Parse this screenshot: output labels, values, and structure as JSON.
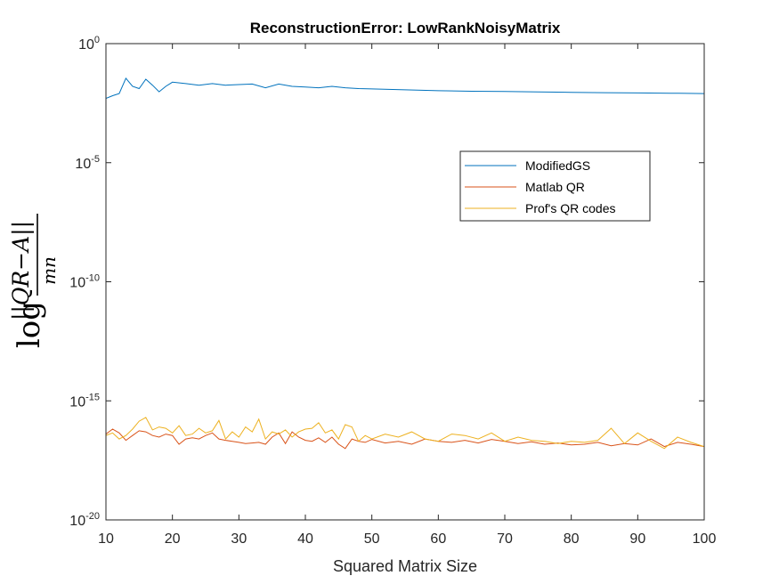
{
  "chart_data": {
    "type": "line",
    "title": "ReconstructionError: LowRankNoisyMatrix",
    "xlabel": "Squared Matrix Size",
    "ylabel": {
      "prefix": "log",
      "numerator": "||QR−A||",
      "denominator": "mn"
    },
    "xlim": [
      10,
      100
    ],
    "ylim": [
      1e-20,
      1
    ],
    "yscale": "log",
    "x_ticks": [
      "10",
      "20",
      "30",
      "40",
      "50",
      "60",
      "70",
      "80",
      "90",
      "100"
    ],
    "y_ticks": [
      {
        "base": "10",
        "exp": "0"
      },
      {
        "base": "10",
        "exp": "-5"
      },
      {
        "base": "10",
        "exp": "-10"
      },
      {
        "base": "10",
        "exp": "-15"
      },
      {
        "base": "10",
        "exp": "-20"
      }
    ],
    "legend_position": "upper-right",
    "series": [
      {
        "name": "ModifiedGS",
        "color": "#0072BD",
        "points": [
          [
            10,
            0.005
          ],
          [
            11,
            0.0065
          ],
          [
            12,
            0.008
          ],
          [
            13,
            0.035
          ],
          [
            14,
            0.016
          ],
          [
            15,
            0.013
          ],
          [
            16,
            0.032
          ],
          [
            17,
            0.018
          ],
          [
            18,
            0.0095
          ],
          [
            19,
            0.016
          ],
          [
            20,
            0.024
          ],
          [
            22,
            0.021
          ],
          [
            24,
            0.018
          ],
          [
            26,
            0.021
          ],
          [
            28,
            0.018
          ],
          [
            30,
            0.019
          ],
          [
            32,
            0.02
          ],
          [
            34,
            0.014
          ],
          [
            36,
            0.02
          ],
          [
            38,
            0.016
          ],
          [
            40,
            0.015
          ],
          [
            42,
            0.014
          ],
          [
            44,
            0.016
          ],
          [
            46,
            0.014
          ],
          [
            48,
            0.013
          ],
          [
            50,
            0.0125
          ],
          [
            55,
            0.0115
          ],
          [
            60,
            0.0105
          ],
          [
            65,
            0.01
          ],
          [
            70,
            0.0098
          ],
          [
            75,
            0.0093
          ],
          [
            80,
            0.009
          ],
          [
            85,
            0.0087
          ],
          [
            90,
            0.0085
          ],
          [
            95,
            0.0083
          ],
          [
            100,
            0.008
          ]
        ]
      },
      {
        "name": "Matlab QR",
        "color": "#D95319",
        "points": [
          [
            10,
            4e-17
          ],
          [
            11,
            6.5e-17
          ],
          [
            12,
            4.5e-17
          ],
          [
            13,
            2.2e-17
          ],
          [
            14,
            3.5e-17
          ],
          [
            15,
            5.5e-17
          ],
          [
            16,
            5e-17
          ],
          [
            17,
            3.5e-17
          ],
          [
            18,
            3e-17
          ],
          [
            19,
            4e-17
          ],
          [
            20,
            3.5e-17
          ],
          [
            21,
            1.5e-17
          ],
          [
            22,
            2.5e-17
          ],
          [
            23,
            2.8e-17
          ],
          [
            24,
            2.5e-17
          ],
          [
            25,
            3.5e-17
          ],
          [
            26,
            4.5e-17
          ],
          [
            27,
            2.5e-17
          ],
          [
            28,
            2.2e-17
          ],
          [
            29,
            2e-17
          ],
          [
            30,
            1.8e-17
          ],
          [
            31,
            1.6e-17
          ],
          [
            32,
            1.7e-17
          ],
          [
            33,
            1.8e-17
          ],
          [
            34,
            1.5e-17
          ],
          [
            35,
            3e-17
          ],
          [
            36,
            4.5e-17
          ],
          [
            37,
            1.6e-17
          ],
          [
            38,
            5e-17
          ],
          [
            39,
            3e-17
          ],
          [
            40,
            2.2e-17
          ],
          [
            41,
            2e-17
          ],
          [
            42,
            2.8e-17
          ],
          [
            43,
            1.8e-17
          ],
          [
            44,
            3e-17
          ],
          [
            45,
            1.5e-17
          ],
          [
            46,
            1e-17
          ],
          [
            47,
            2.5e-17
          ],
          [
            48,
            2e-17
          ],
          [
            49,
            1.8e-17
          ],
          [
            50,
            2.4e-17
          ],
          [
            52,
            1.7e-17
          ],
          [
            54,
            2e-17
          ],
          [
            56,
            1.5e-17
          ],
          [
            58,
            2.5e-17
          ],
          [
            60,
            2e-17
          ],
          [
            62,
            1.8e-17
          ],
          [
            64,
            2.2e-17
          ],
          [
            66,
            1.7e-17
          ],
          [
            68,
            2.4e-17
          ],
          [
            70,
            2e-17
          ],
          [
            72,
            1.6e-17
          ],
          [
            74,
            1.9e-17
          ],
          [
            76,
            1.5e-17
          ],
          [
            78,
            1.7e-17
          ],
          [
            80,
            1.4e-17
          ],
          [
            82,
            1.5e-17
          ],
          [
            84,
            1.8e-17
          ],
          [
            86,
            1.3e-17
          ],
          [
            88,
            1.6e-17
          ],
          [
            90,
            1.4e-17
          ],
          [
            92,
            2.5e-17
          ],
          [
            94,
            1.2e-17
          ],
          [
            96,
            1.8e-17
          ],
          [
            98,
            1.5e-17
          ],
          [
            100,
            1.2e-17
          ]
        ]
      },
      {
        "name": "Prof's QR codes",
        "color": "#EDB120",
        "points": [
          [
            10,
            3.5e-17
          ],
          [
            11,
            4.5e-17
          ],
          [
            12,
            2.5e-17
          ],
          [
            13,
            3.5e-17
          ],
          [
            14,
            6.5e-17
          ],
          [
            15,
            1.4e-16
          ],
          [
            16,
            2e-16
          ],
          [
            17,
            6e-17
          ],
          [
            18,
            8e-17
          ],
          [
            19,
            7e-17
          ],
          [
            20,
            4.5e-17
          ],
          [
            21,
            9e-17
          ],
          [
            22,
            3.5e-17
          ],
          [
            23,
            4e-17
          ],
          [
            24,
            7e-17
          ],
          [
            25,
            4.5e-17
          ],
          [
            26,
            5.5e-17
          ],
          [
            27,
            1.5e-16
          ],
          [
            28,
            2.5e-17
          ],
          [
            29,
            5e-17
          ],
          [
            30,
            3e-17
          ],
          [
            31,
            8e-17
          ],
          [
            32,
            5e-17
          ],
          [
            33,
            1.7e-16
          ],
          [
            34,
            2.5e-17
          ],
          [
            35,
            5e-17
          ],
          [
            36,
            4e-17
          ],
          [
            37,
            6e-17
          ],
          [
            38,
            3e-17
          ],
          [
            39,
            5e-17
          ],
          [
            40,
            6.5e-17
          ],
          [
            41,
            7e-17
          ],
          [
            42,
            1.2e-16
          ],
          [
            43,
            4.5e-17
          ],
          [
            44,
            6e-17
          ],
          [
            45,
            2.5e-17
          ],
          [
            46,
            1e-16
          ],
          [
            47,
            8e-17
          ],
          [
            48,
            2e-17
          ],
          [
            49,
            3.5e-17
          ],
          [
            50,
            2.5e-17
          ],
          [
            52,
            4e-17
          ],
          [
            54,
            3e-17
          ],
          [
            56,
            5e-17
          ],
          [
            58,
            2.5e-17
          ],
          [
            60,
            2e-17
          ],
          [
            62,
            4e-17
          ],
          [
            64,
            3.5e-17
          ],
          [
            66,
            2.5e-17
          ],
          [
            68,
            4.5e-17
          ],
          [
            70,
            2e-17
          ],
          [
            72,
            3e-17
          ],
          [
            74,
            2.2e-17
          ],
          [
            76,
            2e-17
          ],
          [
            78,
            1.6e-17
          ],
          [
            80,
            2e-17
          ],
          [
            82,
            1.8e-17
          ],
          [
            84,
            2.2e-17
          ],
          [
            86,
            7e-17
          ],
          [
            88,
            1.6e-17
          ],
          [
            90,
            4.5e-17
          ],
          [
            92,
            2e-17
          ],
          [
            94,
            1e-17
          ],
          [
            96,
            3e-17
          ],
          [
            98,
            1.8e-17
          ],
          [
            100,
            1.2e-17
          ]
        ]
      }
    ]
  }
}
